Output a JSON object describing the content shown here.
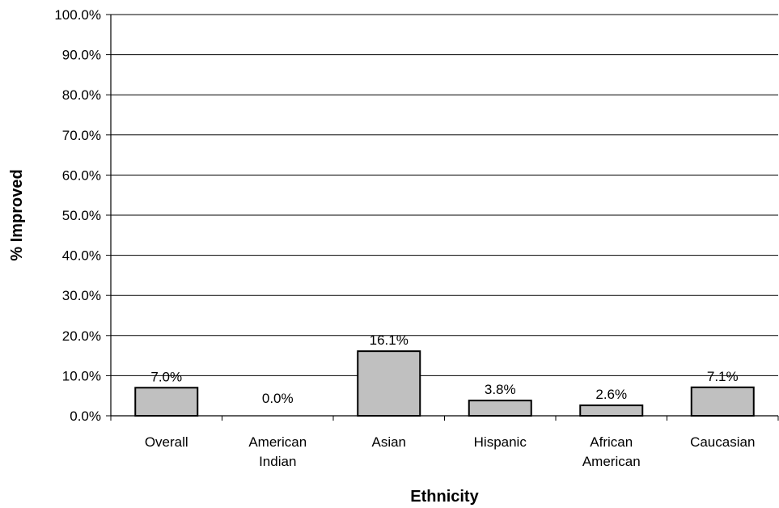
{
  "chart_data": {
    "type": "bar",
    "categories": [
      "Overall",
      "American Indian",
      "Asian",
      "Hispanic",
      "African American",
      "Caucasian"
    ],
    "category_lines": [
      [
        "Overall"
      ],
      [
        "American",
        "Indian"
      ],
      [
        "Asian"
      ],
      [
        "Hispanic"
      ],
      [
        "African",
        "American"
      ],
      [
        "Caucasian"
      ]
    ],
    "values": [
      7.0,
      0.0,
      16.1,
      3.8,
      2.6,
      7.1
    ],
    "data_labels": [
      "7.0%",
      "0.0%",
      "16.1%",
      "3.8%",
      "2.6%",
      "7.1%"
    ],
    "yticks": [
      "0.0%",
      "10.0%",
      "20.0%",
      "30.0%",
      "40.0%",
      "50.0%",
      "60.0%",
      "70.0%",
      "80.0%",
      "90.0%",
      "100.0%"
    ],
    "ylim": [
      0,
      100
    ],
    "xlabel": "Ethnicity",
    "ylabel": "% Improved",
    "grid": true,
    "colors": {
      "bar_fill": "#c0c0c0",
      "bar_stroke": "#000000",
      "grid": "#000000"
    }
  }
}
